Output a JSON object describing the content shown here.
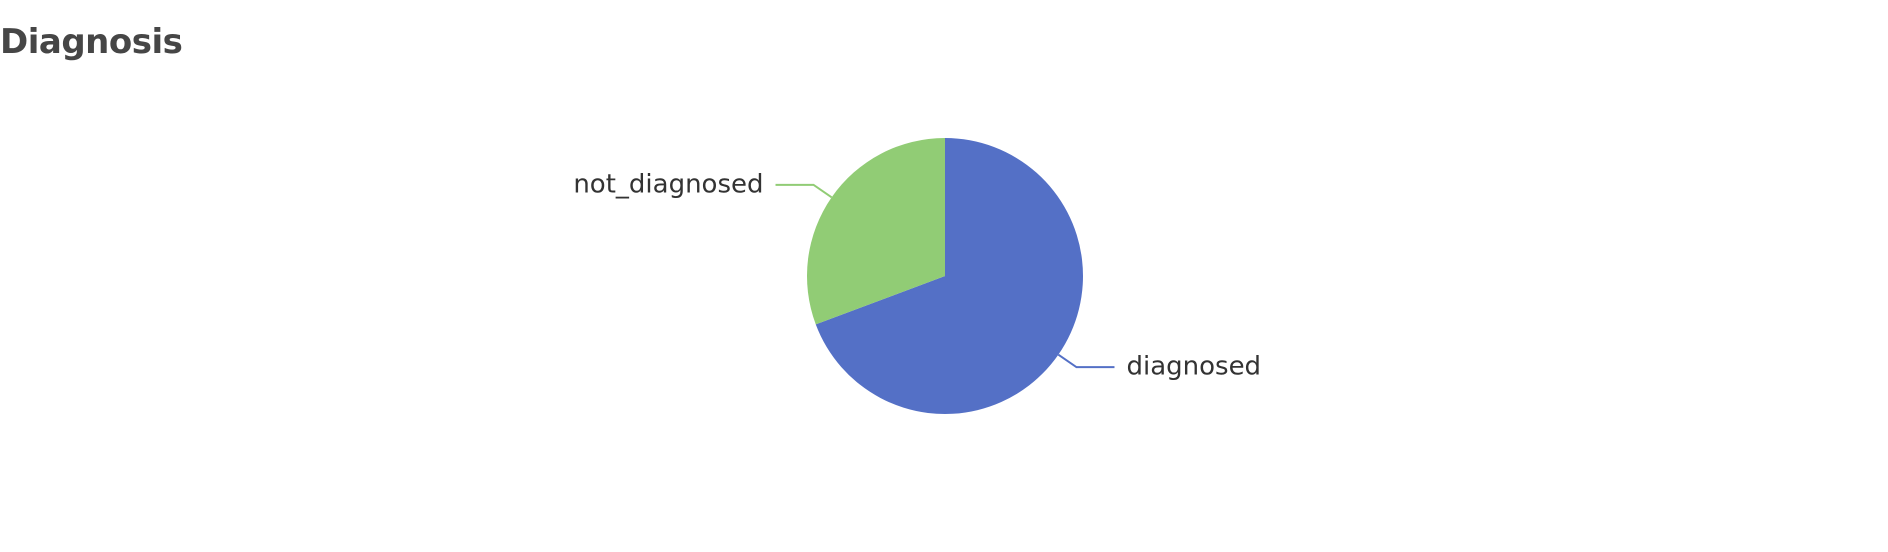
{
  "panel": {
    "title": "Diagnosis"
  },
  "chart_data": {
    "type": "pie",
    "title": "Diagnosis",
    "slices": [
      {
        "label": "diagnosed",
        "value": 69.3,
        "color": "#5470c6"
      },
      {
        "label": "not_diagnosed",
        "value": 30.7,
        "color": "#91cc75"
      }
    ],
    "start_angle_deg": 90,
    "direction": "clockwise",
    "legend": "none",
    "labels": "outside-with-leader-lines"
  }
}
